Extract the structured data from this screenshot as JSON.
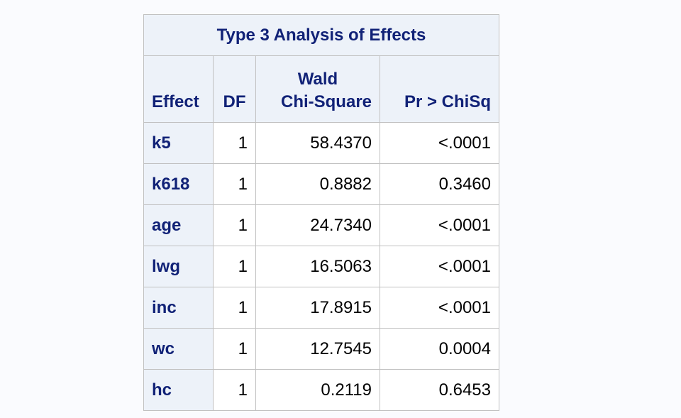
{
  "table": {
    "title": "Type 3 Analysis of Effects",
    "headers": {
      "effect": "Effect",
      "df": "DF",
      "chi_line1": "Wald",
      "chi_line2": "Chi-Square",
      "p": "Pr > ChiSq"
    },
    "rows": [
      {
        "effect": "k5",
        "df": "1",
        "chi": "58.4370",
        "p": "<.0001"
      },
      {
        "effect": "k618",
        "df": "1",
        "chi": "0.8882",
        "p": "0.3460"
      },
      {
        "effect": "age",
        "df": "1",
        "chi": "24.7340",
        "p": "<.0001"
      },
      {
        "effect": "lwg",
        "df": "1",
        "chi": "16.5063",
        "p": "<.0001"
      },
      {
        "effect": "inc",
        "df": "1",
        "chi": "17.8915",
        "p": "<.0001"
      },
      {
        "effect": "wc",
        "df": "1",
        "chi": "12.7545",
        "p": "0.0004"
      },
      {
        "effect": "hc",
        "df": "1",
        "chi": "0.2119",
        "p": "0.6453"
      }
    ]
  }
}
